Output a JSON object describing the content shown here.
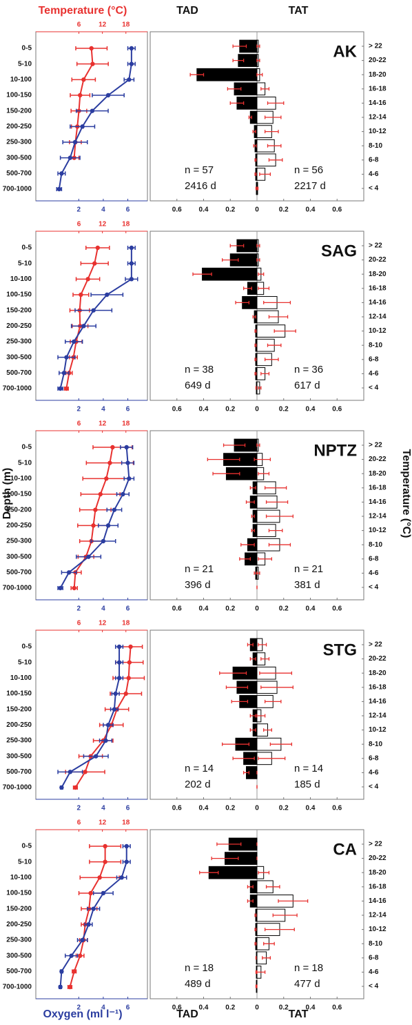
{
  "figure": {
    "temperature_label": "Temperature (°C)",
    "oxygen_label": "Oxygen (ml l⁻¹)",
    "depth_label": "Depth (m)",
    "bin_label": "Temperature (°C)",
    "tad_label": "TAD",
    "tat_label": "TAT"
  },
  "chart_data": [
    {
      "type": "line",
      "categories": [
        "0-5",
        "5-10",
        "10-100",
        "100-150",
        "150-200",
        "200-250",
        "250-300",
        "300-500",
        "500-700",
        "700-1000"
      ],
      "xlim": [
        -1.5,
        7.6
      ],
      "xticks": [
        2,
        4,
        6
      ],
      "x2lim": [
        -5,
        23.5
      ],
      "x2ticks": [
        6,
        12,
        18
      ],
      "series": [
        {
          "axis": "x2",
          "color": "#e8312f",
          "values": [
            9.2,
            9.5,
            7.2,
            6.3,
            6.0,
            5.6,
            5.1,
            4.8,
            null,
            null
          ],
          "errors": [
            4,
            4,
            3,
            2.5,
            2,
            1.5,
            1.5,
            1.2,
            null,
            null
          ]
        },
        {
          "color": "#2b3da0",
          "values": [
            6.3,
            6.3,
            6.1,
            4.4,
            3.1,
            2.3,
            1.7,
            1.3,
            0.6,
            0.4
          ],
          "errors": [
            0.3,
            0.3,
            0.4,
            1.3,
            1.3,
            1,
            1,
            0.8,
            0.3,
            0.2
          ]
        }
      ]
    },
    {
      "type": "bar",
      "title": "AK",
      "categories": [
        "> 22",
        "20-22",
        "18-20",
        "16-18",
        "14-16",
        "12-14",
        "10-12",
        "8-10",
        "6-8",
        "4-6",
        "< 4"
      ],
      "xlim": [
        -0.8,
        0.8
      ],
      "xticks": [
        {
          "value": -0.6,
          "label": "0.6"
        },
        {
          "value": -0.4,
          "label": "0.4"
        },
        {
          "value": -0.2,
          "label": "0.2"
        },
        0,
        0.2,
        0.4,
        0.6
      ],
      "error_color": "#e8312f",
      "series": [
        {
          "color": "#000000",
          "values": [
            -0.13,
            -0.14,
            -0.45,
            -0.17,
            -0.15,
            -0.05,
            -0.02,
            -0.015,
            -0.01,
            -0.01,
            -0.005
          ],
          "errors": [
            0.05,
            0.04,
            0.05,
            0.05,
            0.05,
            0.01,
            0.01,
            0.01,
            0.005,
            0.005,
            0.003
          ],
          "annotations": [
            "n = 57",
            "2416 d"
          ]
        },
        {
          "color": "#ffffff",
          "values": [
            0.01,
            0.01,
            0.02,
            0.06,
            0.14,
            0.12,
            0.11,
            0.13,
            0.14,
            0.06,
            0.005
          ],
          "errors": [
            0.01,
            0.01,
            0.02,
            0.03,
            0.06,
            0.06,
            0.05,
            0.05,
            0.05,
            0.04,
            0.003
          ],
          "annotations": [
            "n = 56",
            "2217 d"
          ]
        }
      ]
    },
    {
      "type": "line",
      "categories": [
        "0-5",
        "5-10",
        "10-100",
        "100-150",
        "150-200",
        "200-250",
        "250-300",
        "300-500",
        "500-700",
        "700-1000"
      ],
      "xlim": [
        -1.5,
        7.6
      ],
      "xticks": [
        2,
        4,
        6
      ],
      "x2lim": [
        -5,
        23.5
      ],
      "x2ticks": [
        6,
        12,
        18
      ],
      "series": [
        {
          "axis": "x2",
          "color": "#e8312f",
          "values": [
            10.8,
            10,
            8.3,
            6.5,
            6.2,
            6.3,
            5.3,
            4.6,
            3.5,
            2.8
          ],
          "errors": [
            3,
            3.5,
            3,
            2,
            2.5,
            2,
            1.5,
            1,
            0.8,
            0.5
          ]
        },
        {
          "color": "#2b3da0",
          "values": [
            6.3,
            6.3,
            6.3,
            4.3,
            3.2,
            2.4,
            1.6,
            1.0,
            0.8,
            0.5
          ],
          "errors": [
            0.3,
            0.3,
            0.5,
            1.3,
            1.5,
            1,
            0.7,
            0.7,
            0.4,
            0.2
          ]
        }
      ]
    },
    {
      "type": "bar",
      "title": "SAG",
      "categories": [
        "> 22",
        "20-22",
        "18-20",
        "16-18",
        "14-16",
        "12-14",
        "10-12",
        "8-10",
        "6-8",
        "4-6",
        "< 4"
      ],
      "xlim": [
        -0.8,
        0.8
      ],
      "xticks": [
        {
          "value": -0.6,
          "label": "0.6"
        },
        {
          "value": -0.4,
          "label": "0.4"
        },
        {
          "value": -0.2,
          "label": "0.2"
        },
        0,
        0.2,
        0.4,
        0.6
      ],
      "error_color": "#e8312f",
      "series": [
        {
          "color": "#000000",
          "values": [
            -0.15,
            -0.2,
            -0.41,
            -0.07,
            -0.11,
            -0.02,
            -0.01,
            -0.01,
            -0.01,
            -0.01,
            -0.005
          ],
          "errors": [
            0.05,
            0.06,
            0.07,
            0.03,
            0.05,
            0.01,
            0.005,
            0.005,
            0.005,
            0.005,
            0.003
          ],
          "annotations": [
            "n = 38",
            "649 d"
          ]
        },
        {
          "color": "#ffffff",
          "values": [
            0.01,
            0.01,
            0.03,
            0.05,
            0.15,
            0.16,
            0.21,
            0.13,
            0.11,
            0.06,
            0.02
          ],
          "errors": [
            0.01,
            0.01,
            0.02,
            0.04,
            0.1,
            0.07,
            0.08,
            0.05,
            0.05,
            0.03,
            0.01
          ],
          "annotations": [
            "n = 36",
            "617 d"
          ]
        }
      ]
    },
    {
      "type": "line",
      "categories": [
        "0-5",
        "5-10",
        "10-100",
        "100-150",
        "150-200",
        "200-250",
        "250-300",
        "300-500",
        "500-700",
        "700-1000"
      ],
      "xlim": [
        -1.5,
        7.6
      ],
      "xticks": [
        2,
        4,
        6
      ],
      "x2lim": [
        -5,
        23.5
      ],
      "x2ticks": [
        6,
        12,
        18
      ],
      "series": [
        {
          "axis": "x2",
          "color": "#e8312f",
          "values": [
            14.6,
            13.9,
            13,
            11.5,
            10.2,
            9.7,
            9.2,
            7.8,
            5.1,
            4.8
          ],
          "errors": [
            5,
            6,
            6,
            5,
            4,
            4,
            3,
            2,
            1.5,
            0.8
          ]
        },
        {
          "color": "#2b3da0",
          "values": [
            5.9,
            6.0,
            6.1,
            5.6,
            4.9,
            4.4,
            4.0,
            2.8,
            1.2,
            0.5
          ],
          "errors": [
            0.5,
            0.5,
            0.4,
            0.5,
            0.6,
            0.8,
            1,
            1,
            0.6,
            0.2
          ]
        }
      ]
    },
    {
      "type": "bar",
      "title": "NPTZ",
      "categories": [
        "> 22",
        "20-22",
        "18-20",
        "16-18",
        "14-16",
        "12-14",
        "10-12",
        "8-10",
        "6-8",
        "4-6",
        "< 4"
      ],
      "xlim": [
        -0.8,
        0.8
      ],
      "xticks": [
        {
          "value": -0.6,
          "label": "0.6"
        },
        {
          "value": -0.4,
          "label": "0.4"
        },
        {
          "value": -0.2,
          "label": "0.2"
        },
        0,
        0.2,
        0.4,
        0.6
      ],
      "error_color": "#e8312f",
      "series": [
        {
          "color": "#000000",
          "values": [
            -0.17,
            -0.25,
            -0.23,
            -0.03,
            -0.05,
            -0.03,
            -0.03,
            -0.07,
            -0.09,
            -0.01,
            0
          ],
          "errors": [
            0.08,
            0.12,
            0.1,
            0.02,
            0.03,
            0.01,
            0.01,
            0.05,
            0.04,
            0.01,
            0
          ],
          "annotations": [
            "n = 21",
            "396 d"
          ]
        },
        {
          "color": "#ffffff",
          "values": [
            0.01,
            0.04,
            0.05,
            0.14,
            0.15,
            0.17,
            0.14,
            0.17,
            0.06,
            0.01,
            0
          ],
          "errors": [
            0.01,
            0.06,
            0.04,
            0.08,
            0.08,
            0.1,
            0.05,
            0.08,
            0.05,
            0.01,
            0
          ],
          "annotations": [
            "n = 21",
            "381 d"
          ]
        }
      ]
    },
    {
      "type": "line",
      "categories": [
        "0-5",
        "5-10",
        "10-100",
        "100-150",
        "150-200",
        "200-250",
        "250-300",
        "300-500",
        "500-700",
        "700-1000"
      ],
      "xlim": [
        -1.5,
        7.6
      ],
      "xticks": [
        2,
        4,
        6
      ],
      "x2lim": [
        -5,
        23.5
      ],
      "x2ticks": [
        6,
        12,
        18
      ],
      "series": [
        {
          "axis": "x2",
          "color": "#e8312f",
          "values": [
            19.2,
            18.9,
            18.7,
            18,
            15.7,
            14.3,
            12.2,
            9,
            7.6,
            5.1
          ],
          "errors": [
            3,
            3.5,
            4,
            4,
            3,
            3,
            2.5,
            3,
            5,
            0.5
          ]
        },
        {
          "color": "#2b3da0",
          "values": [
            5.3,
            5.3,
            5.3,
            5.0,
            4.9,
            4.4,
            4.2,
            3.4,
            1.3,
            0.6
          ],
          "errors": [
            0.3,
            0.3,
            0.3,
            0.3,
            0.3,
            0.4,
            0.5,
            1,
            1,
            0.1
          ]
        }
      ]
    },
    {
      "type": "bar",
      "title": "STG",
      "categories": [
        "> 22",
        "20-22",
        "18-20",
        "16-18",
        "14-16",
        "12-14",
        "10-12",
        "8-10",
        "6-8",
        "4-6",
        "< 4"
      ],
      "xlim": [
        -0.8,
        0.8
      ],
      "xticks": [
        {
          "value": -0.6,
          "label": "0.6"
        },
        {
          "value": -0.4,
          "label": "0.4"
        },
        {
          "value": -0.2,
          "label": "0.2"
        },
        0,
        0.2,
        0.4,
        0.6
      ],
      "error_color": "#e8312f",
      "series": [
        {
          "color": "#000000",
          "values": [
            -0.05,
            -0.03,
            -0.18,
            -0.15,
            -0.13,
            -0.03,
            -0.03,
            -0.16,
            -0.1,
            -0.08,
            0
          ],
          "errors": [
            0.02,
            0.02,
            0.1,
            0.08,
            0.06,
            0.02,
            0.02,
            0.1,
            0.08,
            0.02,
            0
          ],
          "annotations": [
            "n = 14",
            "202 d"
          ]
        },
        {
          "color": "#ffffff",
          "values": [
            0.04,
            0.06,
            0.14,
            0.15,
            0.12,
            0.03,
            0.08,
            0.18,
            0.11,
            0,
            0
          ],
          "errors": [
            0.03,
            0.03,
            0.12,
            0.12,
            0.06,
            0.03,
            0.03,
            0.08,
            0.1,
            0,
            0
          ],
          "annotations": [
            "n = 14",
            "185 d"
          ]
        }
      ]
    },
    {
      "type": "line",
      "categories": [
        "0-5",
        "5-10",
        "10-100",
        "100-150",
        "150-200",
        "200-250",
        "250-300",
        "300-500",
        "500-700",
        "700-1000"
      ],
      "xlim": [
        -1.5,
        7.6
      ],
      "xticks": [
        2,
        4,
        6
      ],
      "x2lim": [
        -5,
        23.5
      ],
      "x2ticks": [
        6,
        12,
        18
      ],
      "series": [
        {
          "axis": "x2",
          "color": "#e8312f",
          "values": [
            12.7,
            12.7,
            11.3,
            9,
            8.6,
            7.6,
            7.2,
            6.3,
            4.8,
            3.7
          ],
          "errors": [
            4,
            4,
            5,
            3,
            2,
            1,
            1,
            1,
            0.5,
            0.5
          ]
        },
        {
          "color": "#2b3da0",
          "values": [
            5.9,
            5.9,
            5.5,
            4.0,
            3.2,
            2.8,
            2.3,
            1.4,
            0.6,
            0.5
          ],
          "errors": [
            0.3,
            0.3,
            0.4,
            0.8,
            0.5,
            0.3,
            0.4,
            0.5,
            0.1,
            0.1
          ]
        }
      ]
    },
    {
      "type": "bar",
      "title": "CA",
      "categories": [
        "> 22",
        "20-22",
        "18-20",
        "16-18",
        "14-16",
        "12-14",
        "10-12",
        "8-10",
        "6-8",
        "4-6",
        "< 4"
      ],
      "xlim": [
        -0.8,
        0.8
      ],
      "xticks": [
        {
          "value": -0.6,
          "label": "0.6"
        },
        {
          "value": -0.4,
          "label": "0.4"
        },
        {
          "value": -0.2,
          "label": "0.2"
        },
        0,
        0.2,
        0.4,
        0.6
      ],
      "error_color": "#e8312f",
      "series": [
        {
          "color": "#000000",
          "values": [
            -0.21,
            -0.24,
            -0.36,
            -0.05,
            -0.05,
            -0.01,
            -0.01,
            -0.01,
            -0.005,
            -0.005,
            -0.005
          ],
          "errors": [
            0.09,
            0.1,
            0.07,
            0.02,
            0.02,
            0.005,
            0.005,
            0.005,
            0.003,
            0.003,
            0.003
          ],
          "annotations": [
            "n = 18",
            "489 d"
          ]
        },
        {
          "color": "#ffffff",
          "values": [
            0,
            0,
            0.05,
            0.12,
            0.27,
            0.21,
            0.17,
            0.09,
            0.07,
            0.03,
            0
          ],
          "errors": [
            0,
            0,
            0.04,
            0.05,
            0.11,
            0.09,
            0.11,
            0.04,
            0.03,
            0.03,
            0
          ],
          "annotations": [
            "n = 18",
            "477 d"
          ]
        }
      ]
    }
  ]
}
